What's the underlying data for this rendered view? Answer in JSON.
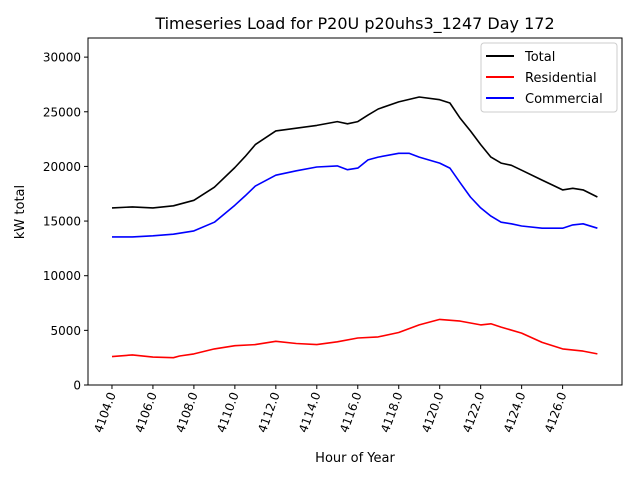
{
  "chart_data": {
    "type": "line",
    "title": "Timeseries Load for P20U p20uhs3_1247  Day 172",
    "xlabel": "Hour of Year",
    "ylabel": "kW total",
    "xlim": [
      4102.83,
      4128.9
    ],
    "ylim": [
      0,
      31750
    ],
    "xticks": [
      4104,
      4106,
      4108,
      4110,
      4112,
      4114,
      4116,
      4118,
      4120,
      4122,
      4124,
      4126
    ],
    "xtick_labels": [
      "4104.0",
      "4106.0",
      "4108.0",
      "4110.0",
      "4112.0",
      "4114.0",
      "4116.0",
      "4118.0",
      "4120.0",
      "4122.0",
      "4124.0",
      "4126.0"
    ],
    "yticks": [
      0,
      5000,
      10000,
      15000,
      20000,
      25000,
      30000
    ],
    "ytick_labels": [
      "0",
      "5000",
      "10000",
      "15000",
      "20000",
      "25000",
      "30000"
    ],
    "grid": false,
    "legend_position": "top-right",
    "series": [
      {
        "name": "Total",
        "color": "#000000",
        "x": [
          4104,
          4105,
          4106,
          4107,
          4108,
          4109,
          4110,
          4110.5,
          4111,
          4112,
          4113,
          4114,
          4115,
          4115.5,
          4116,
          4116.5,
          4117,
          4118,
          4119,
          4120,
          4120.5,
          4121,
          4121.5,
          4122,
          4122.5,
          4123,
          4123.5,
          4124,
          4125,
          4125.5,
          4126,
          4126.5,
          4127,
          4127.7
        ],
        "y": [
          16200,
          16300,
          16200,
          16400,
          16900,
          18100,
          19900,
          20900,
          22000,
          23250,
          23500,
          23750,
          24100,
          23900,
          24100,
          24700,
          25250,
          25900,
          26350,
          26100,
          25800,
          24400,
          23250,
          22000,
          20850,
          20300,
          20100,
          19650,
          18750,
          18300,
          17850,
          18000,
          17850,
          17200
        ]
      },
      {
        "name": "Residential",
        "color": "#ff0000",
        "x": [
          4104,
          4105,
          4106,
          4107,
          4107.3,
          4108,
          4109,
          4110,
          4111,
          4112,
          4113,
          4114,
          4115,
          4116,
          4117,
          4118,
          4119,
          4120,
          4121,
          4122,
          4122.5,
          4123,
          4124,
          4125,
          4126,
          4127,
          4127.7
        ],
        "y": [
          2600,
          2750,
          2550,
          2500,
          2650,
          2850,
          3300,
          3600,
          3700,
          4000,
          3800,
          3700,
          3950,
          4300,
          4400,
          4800,
          5500,
          6000,
          5850,
          5500,
          5600,
          5300,
          4750,
          3900,
          3300,
          3100,
          2850
        ]
      },
      {
        "name": "Commercial",
        "color": "#0000ff",
        "x": [
          4104,
          4105,
          4106,
          4107,
          4108,
          4109,
          4110,
          4110.5,
          4111,
          4112,
          4113,
          4114,
          4115,
          4115.5,
          4116,
          4116.5,
          4117,
          4118,
          4118.5,
          4119,
          4120,
          4120.5,
          4121,
          4121.5,
          4122,
          4122.5,
          4123,
          4123.5,
          4124,
          4125,
          4126,
          4126.5,
          4127,
          4127.7
        ],
        "y": [
          13550,
          13550,
          13650,
          13800,
          14100,
          14900,
          16450,
          17300,
          18200,
          19200,
          19600,
          19950,
          20050,
          19700,
          19850,
          20600,
          20850,
          21200,
          21200,
          20850,
          20300,
          19850,
          18500,
          17200,
          16200,
          15450,
          14900,
          14750,
          14550,
          14350,
          14350,
          14650,
          14750,
          14350
        ]
      }
    ]
  }
}
